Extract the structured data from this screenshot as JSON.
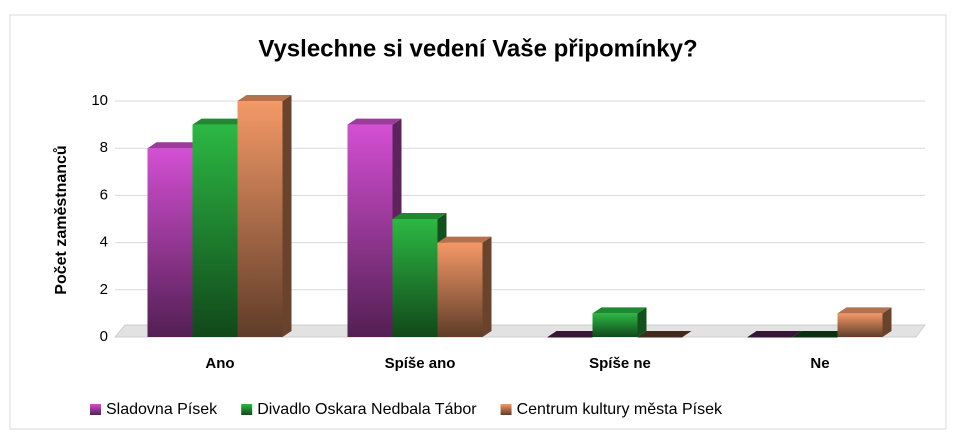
{
  "chart_data": {
    "type": "bar3d",
    "title": "Vyslechne si vedení Vaše připomínky?",
    "y_label": "Počet zaměstnanců",
    "categories": [
      "Ano",
      "Spíše ano",
      "Spíše ne",
      "Ne"
    ],
    "series": [
      {
        "name": "Sladovna Písek",
        "color": "#b845b8",
        "values": [
          8,
          9,
          0,
          0
        ]
      },
      {
        "name": "Divadlo Oskara Nedbala Tábor",
        "color": "#26a03a",
        "values": [
          9,
          5,
          1,
          0
        ]
      },
      {
        "name": "Centrum kultury města Písek",
        "color": "#d4855a",
        "values": [
          10,
          4,
          0,
          1
        ]
      }
    ],
    "ylim": [
      0,
      10
    ],
    "yticks": [
      0,
      2,
      4,
      6,
      8,
      10
    ],
    "grid": true,
    "legend": "bottom"
  }
}
